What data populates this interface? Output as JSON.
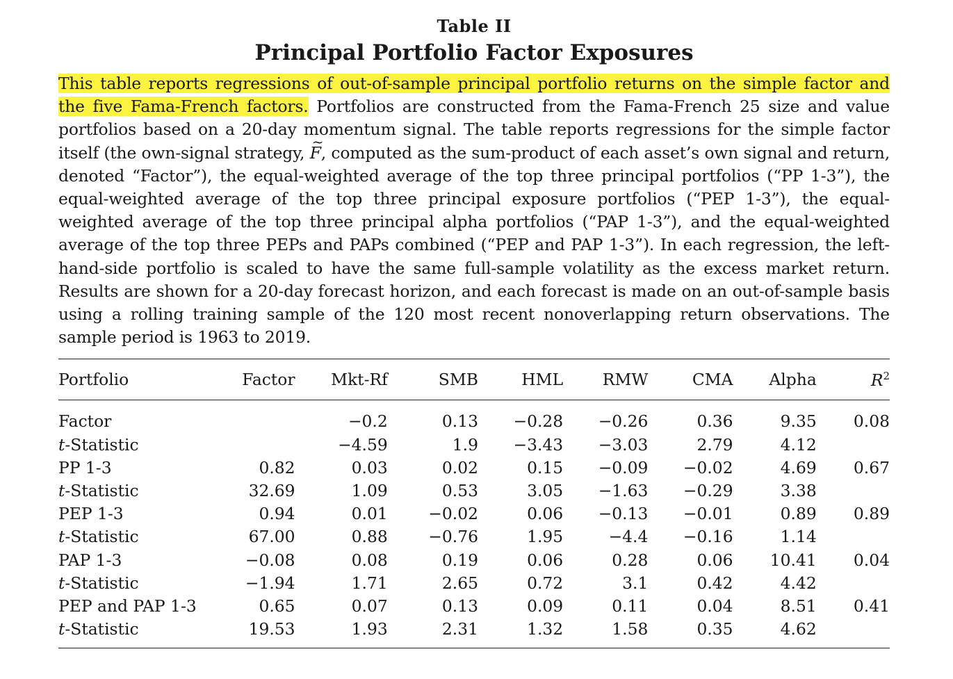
{
  "table": {
    "number": "Table II",
    "title": "Principal Portfolio Factor Exposures"
  },
  "caption": {
    "highlighted": "This table reports regressions of out-of-sample principal portfolio returns on the simple factor and the five Fama-French factors.",
    "part1": " Portfolios are constructed from the Fama-French 25 size and value portfolios based on a 20-day momentum signal. The table reports regressions for the simple factor itself (the own-signal strategy, ",
    "symbol": "F",
    "part2": ", computed as the sum-product of each asset’s own signal and return, denoted “Factor”), the equal-weighted average of the top three principal portfolios (“PP 1-3”), the equal-weighted average of the top three principal exposure portfolios (“PEP 1-3”), the equal-weighted average of the top three principal alpha portfolios (“PAP 1-3”), and the equal-weighted average of the top three PEPs and PAPs combined (“PEP and PAP 1-3”). In each regression, the left-hand-side portfolio is scaled to have the same full-sample volatility as the excess market return. Results are shown for a 20-day forecast horizon, and each forecast is made on an out-of-sample basis using a rolling training sample of the 120 most recent nonoverlapping return observations. The sample period is 1963 to 2019."
  },
  "columns": {
    "portfolio": "Portfolio",
    "factor": "Factor",
    "mktrf": "Mkt-Rf",
    "smb": "SMB",
    "hml": "HML",
    "rmw": "RMW",
    "cma": "CMA",
    "alpha": "Alpha",
    "r2_base": "R",
    "r2_sup": "2"
  },
  "rows": [
    {
      "label": "Factor",
      "italic_t": "",
      "factor": "",
      "mktrf": "−0.2",
      "smb": "0.13",
      "hml": "−0.28",
      "rmw": "−0.26",
      "cma": "0.36",
      "alpha": "9.35",
      "r2": "0.08"
    },
    {
      "label": "-Statistic",
      "italic_t": "t",
      "factor": "",
      "mktrf": "−4.59",
      "smb": "1.9",
      "hml": "−3.43",
      "rmw": "−3.03",
      "cma": "2.79",
      "alpha": "4.12",
      "r2": ""
    },
    {
      "label": "PP 1-3",
      "italic_t": "",
      "factor": "0.82",
      "mktrf": "0.03",
      "smb": "0.02",
      "hml": "0.15",
      "rmw": "−0.09",
      "cma": "−0.02",
      "alpha": "4.69",
      "r2": "0.67"
    },
    {
      "label": "-Statistic",
      "italic_t": "t",
      "factor": "32.69",
      "mktrf": "1.09",
      "smb": "0.53",
      "hml": "3.05",
      "rmw": "−1.63",
      "cma": "−0.29",
      "alpha": "3.38",
      "r2": ""
    },
    {
      "label": "PEP 1-3",
      "italic_t": "",
      "factor": "0.94",
      "mktrf": "0.01",
      "smb": "−0.02",
      "hml": "0.06",
      "rmw": "−0.13",
      "cma": "−0.01",
      "alpha": "0.89",
      "r2": "0.89"
    },
    {
      "label": "-Statistic",
      "italic_t": "t",
      "factor": "67.00",
      "mktrf": "0.88",
      "smb": "−0.76",
      "hml": "1.95",
      "rmw": "−4.4",
      "cma": "−0.16",
      "alpha": "1.14",
      "r2": ""
    },
    {
      "label": "PAP 1-3",
      "italic_t": "",
      "factor": "−0.08",
      "mktrf": "0.08",
      "smb": "0.19",
      "hml": "0.06",
      "rmw": "0.28",
      "cma": "0.06",
      "alpha": "10.41",
      "r2": "0.04"
    },
    {
      "label": "-Statistic",
      "italic_t": "t",
      "factor": "−1.94",
      "mktrf": "1.71",
      "smb": "2.65",
      "hml": "0.72",
      "rmw": "3.1",
      "cma": "0.42",
      "alpha": "4.42",
      "r2": ""
    },
    {
      "label": "PEP and PAP 1-3",
      "italic_t": "",
      "factor": "0.65",
      "mktrf": "0.07",
      "smb": "0.13",
      "hml": "0.09",
      "rmw": "0.11",
      "cma": "0.04",
      "alpha": "8.51",
      "r2": "0.41"
    },
    {
      "label": "-Statistic",
      "italic_t": "t",
      "factor": "19.53",
      "mktrf": "1.93",
      "smb": "2.31",
      "hml": "1.32",
      "rmw": "1.58",
      "cma": "0.35",
      "alpha": "4.62",
      "r2": ""
    }
  ],
  "colors": {
    "highlight": "#fbf33f",
    "text": "#1a1a1a",
    "rule": "#222222"
  }
}
